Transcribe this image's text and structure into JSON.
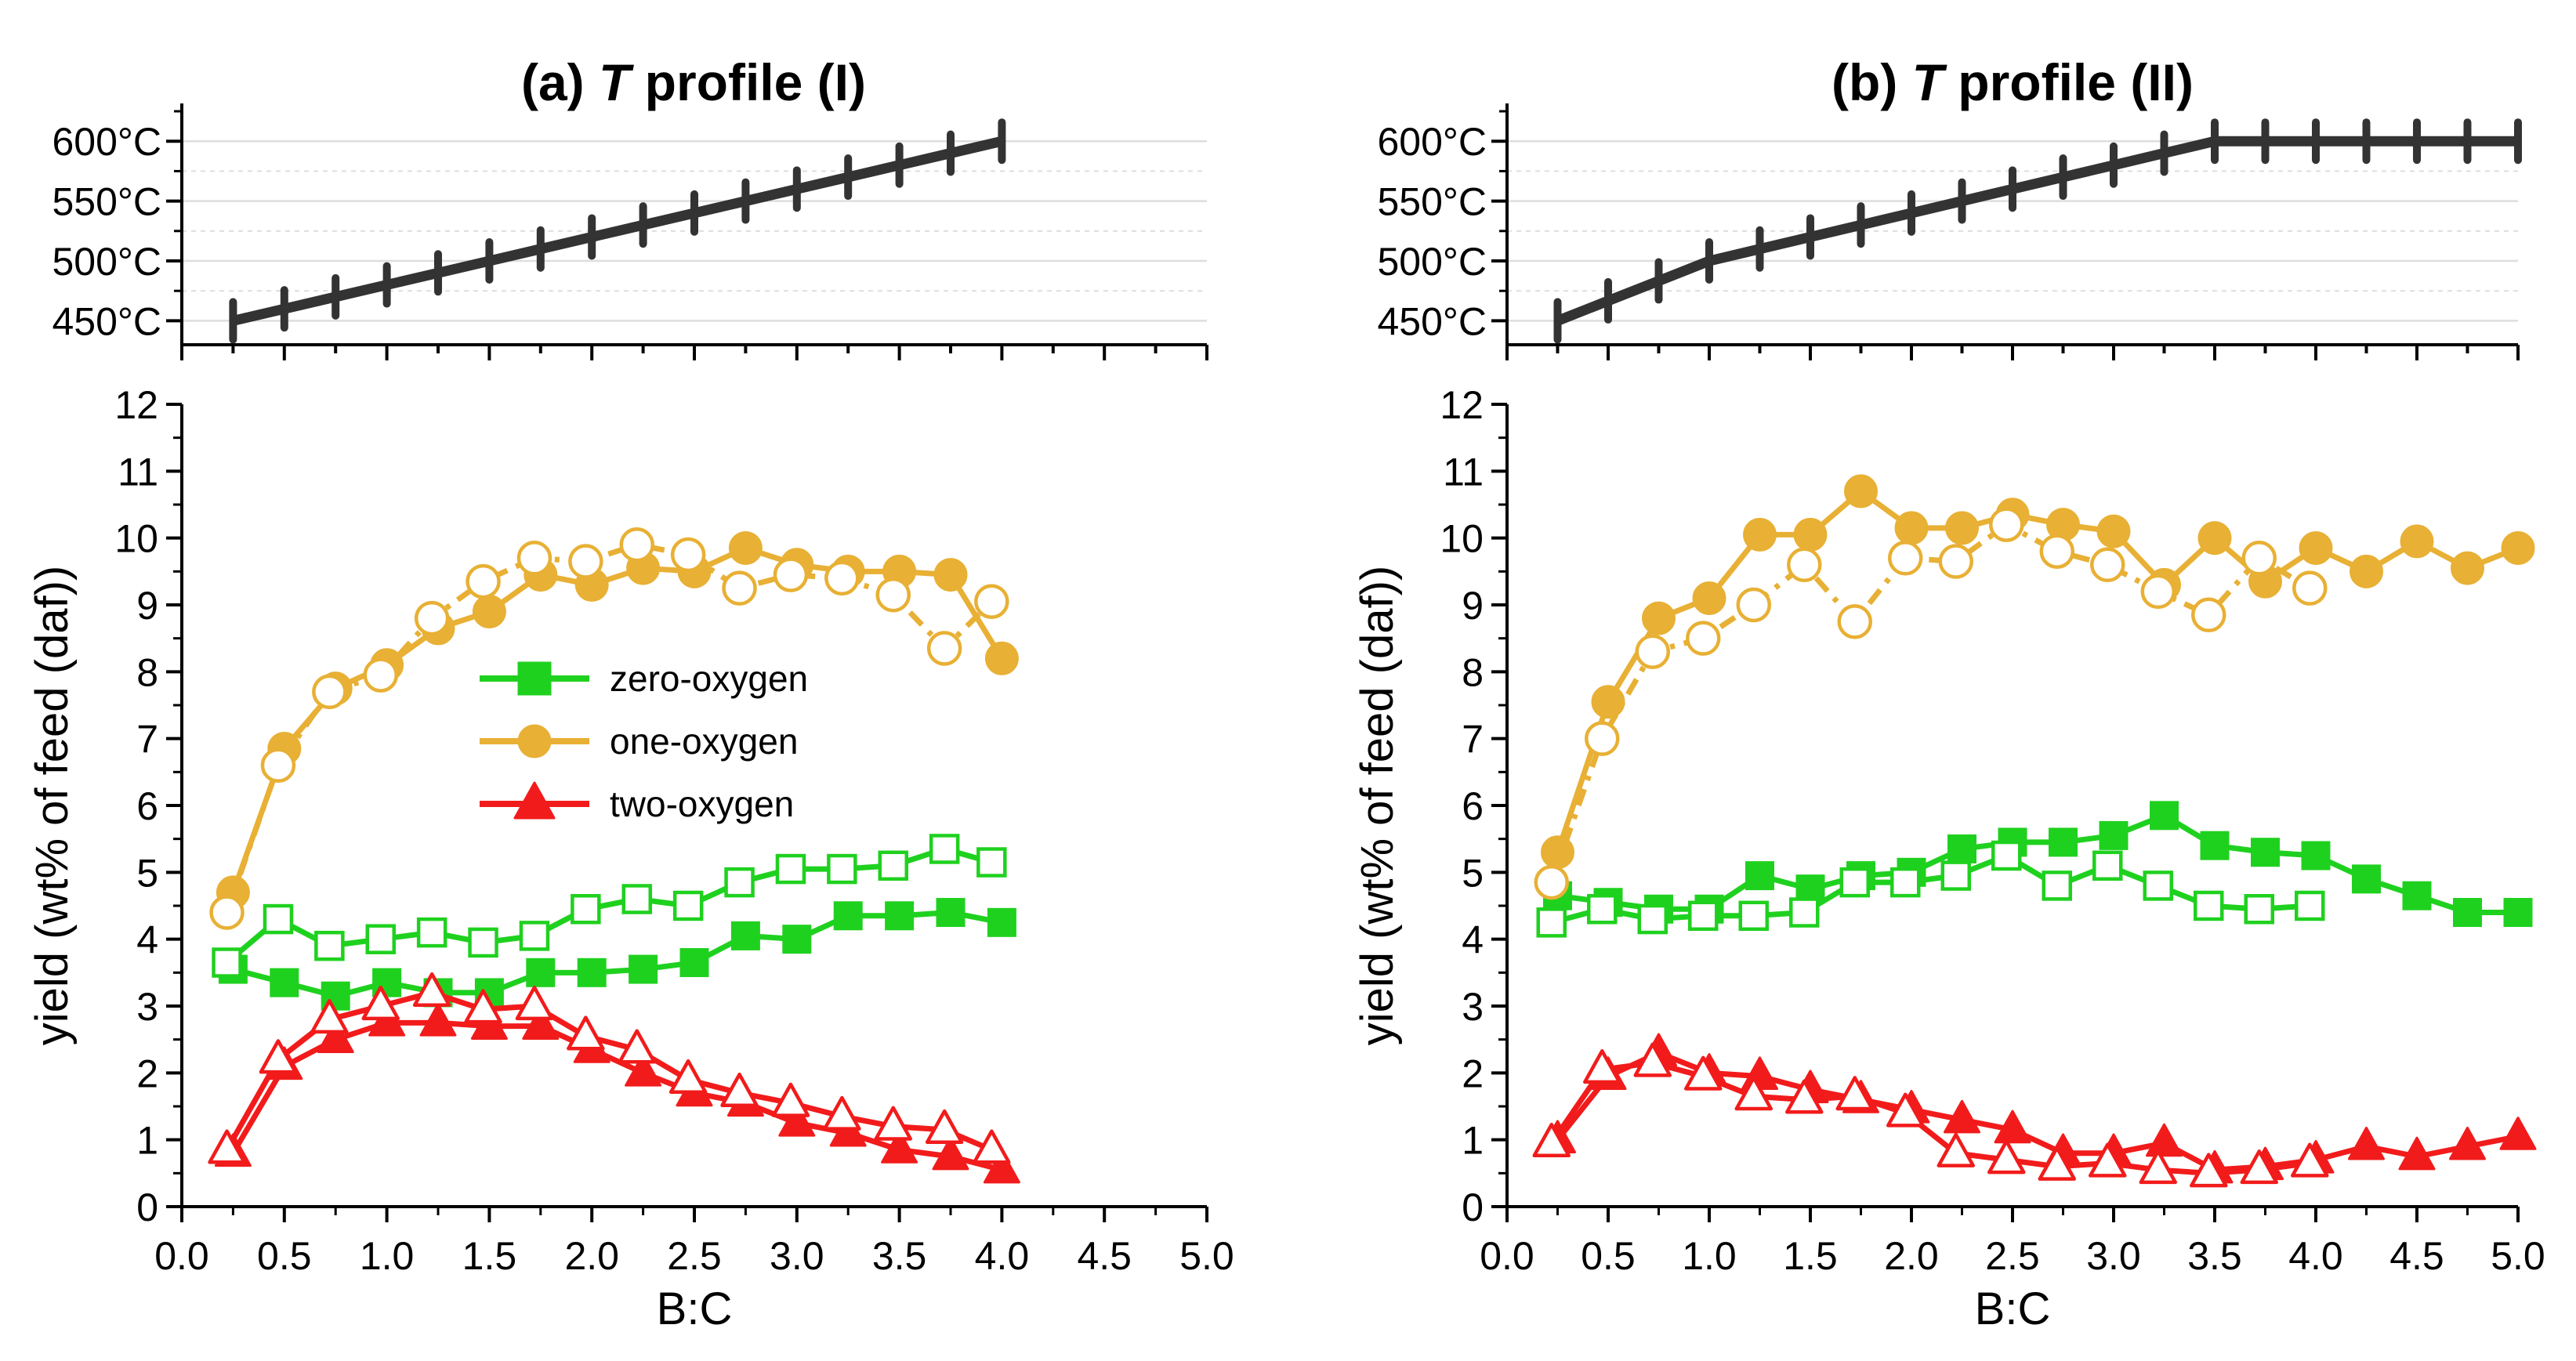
{
  "figure": {
    "colors": {
      "zero": "#1fd11f",
      "one": "#e8b034",
      "two": "#f21b1b",
      "temp": "#333333",
      "grid": "#dedede",
      "axis": "#000000"
    }
  },
  "chart_data": [
    {
      "id": "a",
      "type": "line",
      "title_prefix": "(a) ",
      "title_italic": "T",
      "title_suffix": " profile (I)",
      "xlabel": "B:C",
      "ylabel": "yield (wt% of feed (daf))",
      "xlim": [
        0,
        5
      ],
      "ylim": [
        0,
        12
      ],
      "xticks": [
        "0.0",
        "0.5",
        "1.0",
        "1.5",
        "2.0",
        "2.5",
        "3.0",
        "3.5",
        "4.0",
        "4.5",
        "5.0"
      ],
      "yticks": [
        "0",
        "1",
        "2",
        "3",
        "4",
        "5",
        "6",
        "7",
        "8",
        "9",
        "10",
        "11",
        "12"
      ],
      "temperature": {
        "ylim": [
          430,
          625
        ],
        "yticks": [
          "450°C",
          "500°C",
          "550°C",
          "600°C"
        ],
        "grid": true,
        "x": [
          0.25,
          0.5,
          0.75,
          1.0,
          1.25,
          1.5,
          1.75,
          2.0,
          2.25,
          2.5,
          2.75,
          3.0,
          3.25,
          3.5,
          3.75,
          4.0
        ],
        "y": [
          450,
          460,
          470,
          480,
          490,
          500,
          510,
          520,
          530,
          540,
          550,
          560,
          570,
          580,
          590,
          600
        ]
      },
      "legend": {
        "position": "center",
        "entries": [
          {
            "label": "zero-oxygen",
            "group": "zero",
            "marker": "square"
          },
          {
            "label": "one-oxygen",
            "group": "one",
            "marker": "circle"
          },
          {
            "label": "two-oxygen",
            "group": "two",
            "marker": "triangle"
          }
        ]
      },
      "series": [
        {
          "name": "zero-oxygen (filled)",
          "group": "zero",
          "marker": "square",
          "fill": "filled",
          "line": "solid",
          "x": [
            0.25,
            0.5,
            0.75,
            1.0,
            1.25,
            1.5,
            1.75,
            2.0,
            2.25,
            2.5,
            2.75,
            3.0,
            3.25,
            3.5,
            3.75,
            4.0
          ],
          "y": [
            3.55,
            3.35,
            3.15,
            3.35,
            3.2,
            3.2,
            3.5,
            3.5,
            3.55,
            3.65,
            4.05,
            4.0,
            4.35,
            4.35,
            4.4,
            4.25
          ]
        },
        {
          "name": "zero-oxygen (open)",
          "group": "zero",
          "marker": "square",
          "fill": "open",
          "line": "solid",
          "x": [
            0.22,
            0.47,
            0.72,
            0.97,
            1.22,
            1.47,
            1.72,
            1.97,
            2.22,
            2.47,
            2.72,
            2.97,
            3.22,
            3.47,
            3.72,
            3.95
          ],
          "y": [
            3.65,
            4.3,
            3.9,
            4.0,
            4.1,
            3.95,
            4.05,
            4.45,
            4.6,
            4.5,
            4.85,
            5.05,
            5.05,
            5.1,
            5.35,
            5.15
          ]
        },
        {
          "name": "one-oxygen (filled)",
          "group": "one",
          "marker": "circle",
          "fill": "filled",
          "line": "solid",
          "x": [
            0.25,
            0.5,
            0.75,
            1.0,
            1.25,
            1.5,
            1.75,
            2.0,
            2.25,
            2.5,
            2.75,
            3.0,
            3.25,
            3.5,
            3.75,
            4.0
          ],
          "y": [
            4.7,
            6.85,
            7.75,
            8.1,
            8.65,
            8.9,
            9.45,
            9.3,
            9.55,
            9.5,
            9.85,
            9.6,
            9.5,
            9.5,
            9.45,
            8.2
          ]
        },
        {
          "name": "one-oxygen (open)",
          "group": "one",
          "marker": "circle",
          "fill": "open",
          "line": "dash",
          "x": [
            0.22,
            0.47,
            0.72,
            0.97,
            1.22,
            1.47,
            1.72,
            1.97,
            2.22,
            2.47,
            2.72,
            2.97,
            3.22,
            3.47,
            3.72,
            3.95
          ],
          "y": [
            4.4,
            6.6,
            7.7,
            7.95,
            8.8,
            9.35,
            9.7,
            9.65,
            9.9,
            9.75,
            9.25,
            9.45,
            9.4,
            9.15,
            8.35,
            9.05
          ]
        },
        {
          "name": "two-oxygen (filled)",
          "group": "two",
          "marker": "triangle",
          "fill": "filled",
          "line": "solid",
          "x": [
            0.25,
            0.5,
            0.75,
            1.0,
            1.25,
            1.5,
            1.75,
            2.0,
            2.25,
            2.5,
            2.75,
            3.0,
            3.25,
            3.5,
            3.75,
            4.0
          ],
          "y": [
            0.8,
            2.1,
            2.5,
            2.75,
            2.75,
            2.7,
            2.7,
            2.35,
            2.0,
            1.7,
            1.55,
            1.25,
            1.1,
            0.85,
            0.75,
            0.55
          ]
        },
        {
          "name": "two-oxygen (open)",
          "group": "two",
          "marker": "triangle",
          "fill": "open",
          "line": "solid",
          "x": [
            0.22,
            0.47,
            0.72,
            0.97,
            1.22,
            1.47,
            1.72,
            1.97,
            2.22,
            2.47,
            2.72,
            2.97,
            3.22,
            3.47,
            3.72,
            3.95
          ],
          "y": [
            0.85,
            2.2,
            2.8,
            3.0,
            3.2,
            2.95,
            3.0,
            2.55,
            2.35,
            1.9,
            1.7,
            1.55,
            1.35,
            1.2,
            1.15,
            0.85
          ]
        }
      ]
    },
    {
      "id": "b",
      "type": "line",
      "title_prefix": "(b) ",
      "title_italic": "T",
      "title_suffix": " profile (II)",
      "xlabel": "B:C",
      "ylabel": "yield (wt% of feed (daf))",
      "xlim": [
        0,
        5
      ],
      "ylim": [
        0,
        12
      ],
      "xticks": [
        "0.0",
        "0.5",
        "1.0",
        "1.5",
        "2.0",
        "2.5",
        "3.0",
        "3.5",
        "4.0",
        "4.5",
        "5.0"
      ],
      "yticks": [
        "0",
        "1",
        "2",
        "3",
        "4",
        "5",
        "6",
        "7",
        "8",
        "9",
        "10",
        "11",
        "12"
      ],
      "temperature": {
        "ylim": [
          430,
          625
        ],
        "yticks": [
          "450°C",
          "500°C",
          "550°C",
          "600°C"
        ],
        "grid": true,
        "x": [
          0.25,
          0.5,
          0.75,
          1.0,
          1.25,
          1.5,
          1.75,
          2.0,
          2.25,
          2.5,
          2.75,
          3.0,
          3.25,
          3.5,
          3.75,
          4.0,
          4.25,
          4.5,
          4.75,
          5.0
        ],
        "y": [
          450,
          466.7,
          483.3,
          500,
          510,
          520,
          530,
          540,
          550,
          560,
          570,
          580,
          590,
          600,
          600,
          600,
          600,
          600,
          600,
          600
        ]
      },
      "legend": null,
      "series": [
        {
          "name": "zero-oxygen (filled)",
          "group": "zero",
          "marker": "square",
          "fill": "filled",
          "line": "solid",
          "x": [
            0.25,
            0.5,
            0.75,
            1.0,
            1.25,
            1.5,
            1.75,
            2.0,
            2.25,
            2.5,
            2.75,
            3.0,
            3.25,
            3.5,
            3.75,
            4.0,
            4.25,
            4.5,
            4.75,
            5.0
          ],
          "y": [
            4.65,
            4.55,
            4.45,
            4.45,
            4.95,
            4.75,
            4.95,
            5.0,
            5.35,
            5.45,
            5.45,
            5.55,
            5.85,
            5.4,
            5.3,
            5.25,
            4.9,
            4.65,
            4.4,
            4.4
          ]
        },
        {
          "name": "zero-oxygen (open)",
          "group": "zero",
          "marker": "square",
          "fill": "open",
          "line": "solid",
          "x": [
            0.22,
            0.47,
            0.72,
            0.97,
            1.22,
            1.47,
            1.72,
            1.97,
            2.22,
            2.47,
            2.72,
            2.97,
            3.22,
            3.47,
            3.72,
            3.97
          ],
          "y": [
            4.25,
            4.45,
            4.3,
            4.35,
            4.35,
            4.4,
            4.85,
            4.85,
            4.95,
            5.25,
            4.8,
            5.1,
            4.8,
            4.5,
            4.45,
            4.5
          ]
        },
        {
          "name": "one-oxygen (filled)",
          "group": "one",
          "marker": "circle",
          "fill": "filled",
          "line": "solid",
          "x": [
            0.25,
            0.5,
            0.75,
            1.0,
            1.25,
            1.5,
            1.75,
            2.0,
            2.25,
            2.5,
            2.75,
            3.0,
            3.25,
            3.5,
            3.75,
            4.0,
            4.25,
            4.5,
            4.75,
            5.0
          ],
          "y": [
            5.3,
            7.55,
            8.8,
            9.1,
            10.05,
            10.05,
            10.7,
            10.15,
            10.15,
            10.35,
            10.2,
            10.1,
            9.3,
            10.0,
            9.35,
            9.85,
            9.5,
            9.95,
            9.55,
            9.85
          ]
        },
        {
          "name": "one-oxygen (open)",
          "group": "one",
          "marker": "circle",
          "fill": "open",
          "line": "dash",
          "x": [
            0.22,
            0.47,
            0.72,
            0.97,
            1.22,
            1.47,
            1.72,
            1.97,
            2.22,
            2.47,
            2.72,
            2.97,
            3.22,
            3.47,
            3.72,
            3.97
          ],
          "y": [
            4.85,
            7.0,
            8.3,
            8.5,
            9.0,
            9.6,
            8.75,
            9.7,
            9.65,
            10.2,
            9.8,
            9.6,
            9.2,
            8.85,
            9.7,
            9.25
          ]
        },
        {
          "name": "two-oxygen (filled)",
          "group": "two",
          "marker": "triangle",
          "fill": "filled",
          "line": "solid",
          "x": [
            0.25,
            0.5,
            0.75,
            1.0,
            1.25,
            1.5,
            1.75,
            2.0,
            2.25,
            2.5,
            2.75,
            3.0,
            3.25,
            3.5,
            3.75,
            4.0,
            4.25,
            4.5,
            4.75,
            5.0
          ],
          "y": [
            1.0,
            1.95,
            2.3,
            2.0,
            1.95,
            1.75,
            1.6,
            1.45,
            1.3,
            1.15,
            0.8,
            0.8,
            0.95,
            0.55,
            0.6,
            0.7,
            0.9,
            0.75,
            0.9,
            1.05
          ]
        },
        {
          "name": "two-oxygen (open)",
          "group": "two",
          "marker": "triangle",
          "fill": "open",
          "line": "solid",
          "x": [
            0.22,
            0.47,
            0.72,
            0.97,
            1.22,
            1.47,
            1.72,
            1.97,
            2.22,
            2.47,
            2.72,
            2.97,
            3.22,
            3.47,
            3.72,
            3.97
          ],
          "y": [
            0.95,
            2.05,
            2.15,
            1.95,
            1.65,
            1.6,
            1.65,
            1.4,
            0.8,
            0.7,
            0.6,
            0.65,
            0.55,
            0.5,
            0.55,
            0.65
          ]
        }
      ]
    }
  ]
}
